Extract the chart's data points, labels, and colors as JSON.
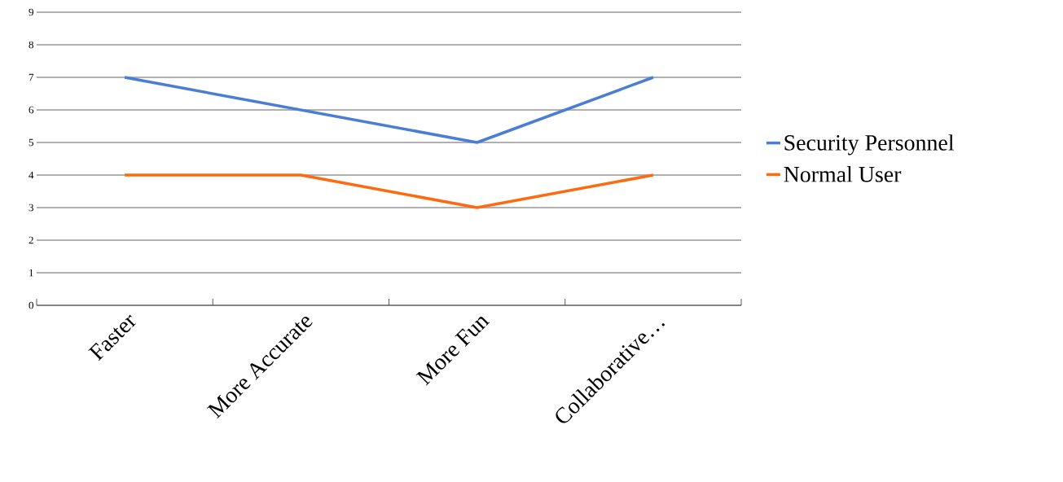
{
  "chart_data": {
    "type": "line",
    "categories": [
      "Faster",
      "More Accurate",
      "More Fun",
      "Collaborative…"
    ],
    "series": [
      {
        "name": "Security Personnel",
        "color": "#4a7dd4",
        "values": [
          7,
          6,
          5,
          7
        ]
      },
      {
        "name": "Normal User",
        "color": "#ff6a10",
        "values": [
          4,
          4,
          3,
          4
        ]
      }
    ],
    "ylim": [
      0,
      9
    ],
    "yticks": [
      0,
      1,
      2,
      3,
      4,
      5,
      6,
      7,
      8,
      9
    ],
    "grid": "y",
    "legend": "right",
    "marker": "none",
    "line_style": "solid"
  }
}
